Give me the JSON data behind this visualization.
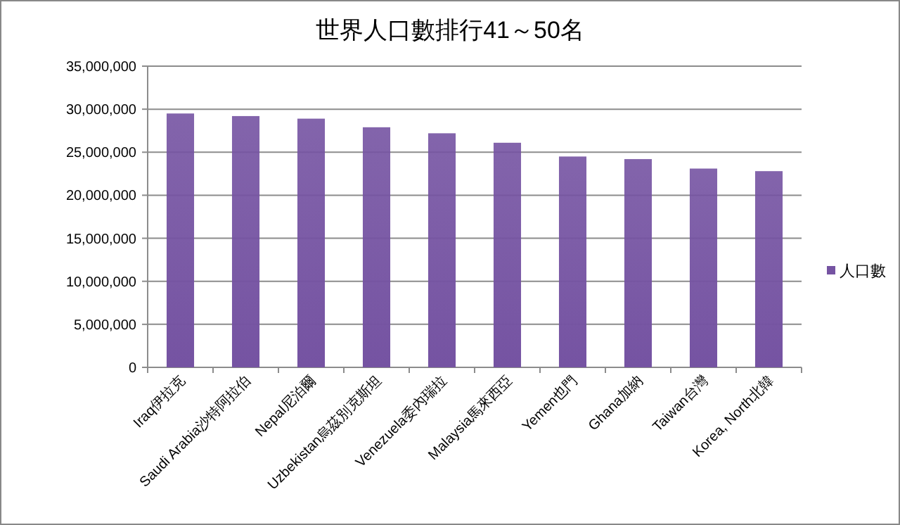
{
  "chart_data": {
    "type": "bar",
    "title": "世界人口數排行41～50名",
    "categories": [
      "Iraq伊拉克",
      "Saudi Arabia沙特阿拉伯",
      "Nepal尼泊爾",
      "Uzbekistan烏茲別克斯坦",
      "Venezuela委內瑞拉",
      "Malaysia馬來西亞",
      "Yemen也門",
      "Ghana加納",
      "Taiwan台灣",
      "Korea, North北韓"
    ],
    "series": [
      {
        "name": "人口數",
        "color": "#7553a2",
        "values": [
          29500000,
          29200000,
          28900000,
          27900000,
          27200000,
          26100000,
          24500000,
          24200000,
          23100000,
          22800000
        ]
      }
    ],
    "ylim": [
      0,
      35000000
    ],
    "yticks": [
      {
        "value": 0,
        "label": "0"
      },
      {
        "value": 5000000,
        "label": "5,000,000"
      },
      {
        "value": 10000000,
        "label": "10,000,000"
      },
      {
        "value": 15000000,
        "label": "15,000,000"
      },
      {
        "value": 20000000,
        "label": "20,000,000"
      },
      {
        "value": 25000000,
        "label": "25,000,000"
      },
      {
        "value": 30000000,
        "label": "30,000,000"
      },
      {
        "value": 35000000,
        "label": "35,000,000"
      }
    ],
    "grid": "y",
    "legend": "right"
  }
}
